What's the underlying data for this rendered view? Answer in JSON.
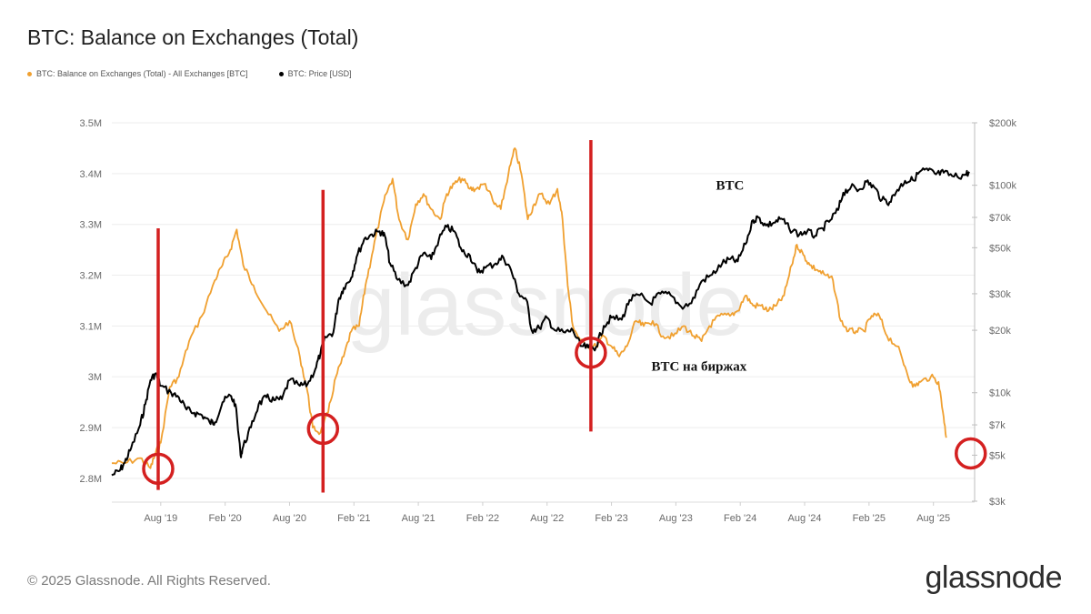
{
  "header": {
    "title": "BTC: Balance on Exchanges (Total)"
  },
  "legend": {
    "items": [
      {
        "label": "BTC: Balance on Exchanges (Total) - All Exchanges [BTC]",
        "color": "#f0a030"
      },
      {
        "label": "BTC: Price [USD]",
        "color": "#000000"
      }
    ]
  },
  "chart_data": {
    "type": "line",
    "title": "BTC: Balance on Exchanges (Total)",
    "x_range": [
      2019.2,
      2025.9
    ],
    "x_tick_labels": [
      {
        "label": "Aug '19",
        "t": 2019.58
      },
      {
        "label": "Feb '20",
        "t": 2020.08
      },
      {
        "label": "Aug '20",
        "t": 2020.58
      },
      {
        "label": "Feb '21",
        "t": 2021.08
      },
      {
        "label": "Aug '21",
        "t": 2021.58
      },
      {
        "label": "Feb '22",
        "t": 2022.08
      },
      {
        "label": "Aug '22",
        "t": 2022.58
      },
      {
        "label": "Feb '23",
        "t": 2023.08
      },
      {
        "label": "Aug '23",
        "t": 2023.58
      },
      {
        "label": "Feb '24",
        "t": 2024.08
      },
      {
        "label": "Aug '24",
        "t": 2024.58
      },
      {
        "label": "Feb '25",
        "t": 2025.08
      },
      {
        "label": "Aug '25",
        "t": 2025.58
      }
    ],
    "y_left": {
      "label": "BTC",
      "range": [
        2.73,
        3.5
      ],
      "ticks": [
        {
          "label": "2.8M",
          "v": 2.8
        },
        {
          "label": "2.9M",
          "v": 2.9
        },
        {
          "label": "3M",
          "v": 3.0
        },
        {
          "label": "3.1M",
          "v": 3.1
        },
        {
          "label": "3.2M",
          "v": 3.2
        },
        {
          "label": "3.3M",
          "v": 3.3
        },
        {
          "label": "3.4M",
          "v": 3.4
        },
        {
          "label": "3.5M",
          "v": 3.5
        }
      ]
    },
    "y_right": {
      "label": "USD",
      "scale": "log",
      "range": [
        3000,
        200000
      ],
      "ticks": [
        {
          "label": "$3k",
          "v": 3000
        },
        {
          "label": "$5k",
          "v": 5000
        },
        {
          "label": "$7k",
          "v": 7000
        },
        {
          "label": "$10k",
          "v": 10000
        },
        {
          "label": "$20k",
          "v": 20000
        },
        {
          "label": "$30k",
          "v": 30000
        },
        {
          "label": "$50k",
          "v": 50000
        },
        {
          "label": "$70k",
          "v": 70000
        },
        {
          "label": "$100k",
          "v": 100000
        },
        {
          "label": "$200k",
          "v": 200000
        }
      ]
    },
    "series": [
      {
        "name": "BTC: Balance on Exchanges (Total) - All Exchanges [BTC]",
        "axis": "left",
        "unit": "M BTC",
        "color": "#f0a030",
        "points": [
          [
            2019.2,
            2.83
          ],
          [
            2019.3,
            2.83
          ],
          [
            2019.42,
            2.84
          ],
          [
            2019.5,
            2.82
          ],
          [
            2019.54,
            2.85
          ],
          [
            2019.58,
            2.87
          ],
          [
            2019.65,
            2.98
          ],
          [
            2019.72,
            3.0
          ],
          [
            2019.8,
            3.07
          ],
          [
            2019.9,
            3.12
          ],
          [
            2020.0,
            3.19
          ],
          [
            2020.06,
            3.22
          ],
          [
            2020.12,
            3.25
          ],
          [
            2020.17,
            3.29
          ],
          [
            2020.22,
            3.22
          ],
          [
            2020.3,
            3.18
          ],
          [
            2020.4,
            3.13
          ],
          [
            2020.5,
            3.09
          ],
          [
            2020.58,
            3.11
          ],
          [
            2020.66,
            3.04
          ],
          [
            2020.72,
            2.97
          ],
          [
            2020.76,
            2.9
          ],
          [
            2020.82,
            2.89
          ],
          [
            2020.88,
            2.93
          ],
          [
            2020.94,
            3.0
          ],
          [
            2021.0,
            3.04
          ],
          [
            2021.06,
            3.09
          ],
          [
            2021.12,
            3.1
          ],
          [
            2021.17,
            3.18
          ],
          [
            2021.22,
            3.24
          ],
          [
            2021.28,
            3.31
          ],
          [
            2021.33,
            3.36
          ],
          [
            2021.38,
            3.39
          ],
          [
            2021.43,
            3.31
          ],
          [
            2021.5,
            3.27
          ],
          [
            2021.56,
            3.34
          ],
          [
            2021.62,
            3.36
          ],
          [
            2021.68,
            3.33
          ],
          [
            2021.75,
            3.31
          ],
          [
            2021.8,
            3.36
          ],
          [
            2021.86,
            3.38
          ],
          [
            2021.92,
            3.39
          ],
          [
            2021.98,
            3.37
          ],
          [
            2022.03,
            3.37
          ],
          [
            2022.1,
            3.38
          ],
          [
            2022.17,
            3.34
          ],
          [
            2022.22,
            3.33
          ],
          [
            2022.28,
            3.4
          ],
          [
            2022.33,
            3.45
          ],
          [
            2022.38,
            3.4
          ],
          [
            2022.43,
            3.31
          ],
          [
            2022.48,
            3.34
          ],
          [
            2022.53,
            3.36
          ],
          [
            2022.6,
            3.34
          ],
          [
            2022.66,
            3.37
          ],
          [
            2022.7,
            3.31
          ],
          [
            2022.74,
            3.18
          ],
          [
            2022.78,
            3.1
          ],
          [
            2022.84,
            3.07
          ],
          [
            2022.9,
            3.06
          ],
          [
            2022.96,
            3.06
          ],
          [
            2023.02,
            3.08
          ],
          [
            2023.08,
            3.06
          ],
          [
            2023.14,
            3.04
          ],
          [
            2023.2,
            3.06
          ],
          [
            2023.27,
            3.11
          ],
          [
            2023.33,
            3.1
          ],
          [
            2023.4,
            3.11
          ],
          [
            2023.48,
            3.08
          ],
          [
            2023.56,
            3.08
          ],
          [
            2023.64,
            3.1
          ],
          [
            2023.72,
            3.08
          ],
          [
            2023.78,
            3.07
          ],
          [
            2023.84,
            3.1
          ],
          [
            2023.92,
            3.12
          ],
          [
            2024.0,
            3.12
          ],
          [
            2024.06,
            3.13
          ],
          [
            2024.12,
            3.16
          ],
          [
            2024.18,
            3.14
          ],
          [
            2024.24,
            3.14
          ],
          [
            2024.3,
            3.13
          ],
          [
            2024.36,
            3.14
          ],
          [
            2024.42,
            3.16
          ],
          [
            2024.48,
            3.22
          ],
          [
            2024.52,
            3.26
          ],
          [
            2024.57,
            3.24
          ],
          [
            2024.62,
            3.22
          ],
          [
            2024.68,
            3.21
          ],
          [
            2024.74,
            3.2
          ],
          [
            2024.8,
            3.19
          ],
          [
            2024.86,
            3.11
          ],
          [
            2024.92,
            3.09
          ],
          [
            2024.98,
            3.09
          ],
          [
            2025.04,
            3.09
          ],
          [
            2025.1,
            3.12
          ],
          [
            2025.16,
            3.12
          ],
          [
            2025.22,
            3.08
          ],
          [
            2025.3,
            3.06
          ],
          [
            2025.36,
            3.02
          ],
          [
            2025.42,
            2.98
          ],
          [
            2025.48,
            2.99
          ],
          [
            2025.56,
            3.0
          ],
          [
            2025.62,
            2.99
          ],
          [
            2025.66,
            2.92
          ],
          [
            2025.68,
            2.88
          ]
        ]
      },
      {
        "name": "BTC: Price [USD]",
        "axis": "right",
        "unit": "USD",
        "color": "#000000",
        "points": [
          [
            2019.2,
            4000
          ],
          [
            2019.26,
            4200
          ],
          [
            2019.3,
            4600
          ],
          [
            2019.35,
            5400
          ],
          [
            2019.42,
            7000
          ],
          [
            2019.46,
            8800
          ],
          [
            2019.5,
            11500
          ],
          [
            2019.54,
            12400
          ],
          [
            2019.58,
            10800
          ],
          [
            2019.66,
            10000
          ],
          [
            2019.72,
            9500
          ],
          [
            2019.78,
            8300
          ],
          [
            2019.84,
            8000
          ],
          [
            2019.9,
            7800
          ],
          [
            2019.96,
            7200
          ],
          [
            2020.0,
            7200
          ],
          [
            2020.06,
            9000
          ],
          [
            2020.12,
            9700
          ],
          [
            2020.16,
            8800
          ],
          [
            2020.2,
            5000
          ],
          [
            2020.22,
            5500
          ],
          [
            2020.28,
            6800
          ],
          [
            2020.34,
            8800
          ],
          [
            2020.4,
            9500
          ],
          [
            2020.46,
            9200
          ],
          [
            2020.52,
            9300
          ],
          [
            2020.58,
            11500
          ],
          [
            2020.66,
            10800
          ],
          [
            2020.72,
            11000
          ],
          [
            2020.78,
            13000
          ],
          [
            2020.82,
            15500
          ],
          [
            2020.86,
            18500
          ],
          [
            2020.92,
            19500
          ],
          [
            2020.96,
            28000
          ],
          [
            2021.0,
            32000
          ],
          [
            2021.06,
            36000
          ],
          [
            2021.1,
            45000
          ],
          [
            2021.16,
            55000
          ],
          [
            2021.22,
            58000
          ],
          [
            2021.28,
            60000
          ],
          [
            2021.32,
            57000
          ],
          [
            2021.36,
            42000
          ],
          [
            2021.42,
            35000
          ],
          [
            2021.5,
            33000
          ],
          [
            2021.56,
            40000
          ],
          [
            2021.62,
            47000
          ],
          [
            2021.68,
            44000
          ],
          [
            2021.74,
            55000
          ],
          [
            2021.8,
            63000
          ],
          [
            2021.86,
            60000
          ],
          [
            2021.92,
            48000
          ],
          [
            2021.98,
            46000
          ],
          [
            2022.04,
            38000
          ],
          [
            2022.1,
            40000
          ],
          [
            2022.18,
            42000
          ],
          [
            2022.24,
            45000
          ],
          [
            2022.3,
            39000
          ],
          [
            2022.36,
            30000
          ],
          [
            2022.42,
            28000
          ],
          [
            2022.46,
            20000
          ],
          [
            2022.52,
            20500
          ],
          [
            2022.58,
            23000
          ],
          [
            2022.64,
            20000
          ],
          [
            2022.72,
            19500
          ],
          [
            2022.78,
            20000
          ],
          [
            2022.84,
            16800
          ],
          [
            2022.9,
            16500
          ],
          [
            2022.96,
            16600
          ],
          [
            2023.02,
            21000
          ],
          [
            2023.08,
            23000
          ],
          [
            2023.16,
            22500
          ],
          [
            2023.22,
            28000
          ],
          [
            2023.3,
            29500
          ],
          [
            2023.38,
            27000
          ],
          [
            2023.46,
            30000
          ],
          [
            2023.54,
            29500
          ],
          [
            2023.62,
            26000
          ],
          [
            2023.7,
            27000
          ],
          [
            2023.78,
            34500
          ],
          [
            2023.86,
            37000
          ],
          [
            2023.94,
            42000
          ],
          [
            2024.0,
            44000
          ],
          [
            2024.06,
            43000
          ],
          [
            2024.12,
            52000
          ],
          [
            2024.18,
            68000
          ],
          [
            2024.22,
            70000
          ],
          [
            2024.28,
            64000
          ],
          [
            2024.34,
            66000
          ],
          [
            2024.4,
            69000
          ],
          [
            2024.46,
            62000
          ],
          [
            2024.54,
            58000
          ],
          [
            2024.6,
            60000
          ],
          [
            2024.66,
            57000
          ],
          [
            2024.72,
            62000
          ],
          [
            2024.78,
            68000
          ],
          [
            2024.84,
            76000
          ],
          [
            2024.88,
            92000
          ],
          [
            2024.94,
            98000
          ],
          [
            2025.0,
            95000
          ],
          [
            2025.06,
            104000
          ],
          [
            2025.12,
            98000
          ],
          [
            2025.18,
            85000
          ],
          [
            2025.24,
            83000
          ],
          [
            2025.3,
            95000
          ],
          [
            2025.36,
            105000
          ],
          [
            2025.42,
            106000
          ],
          [
            2025.48,
            117000
          ],
          [
            2025.54,
            118000
          ],
          [
            2025.6,
            113000
          ],
          [
            2025.66,
            115000
          ],
          [
            2025.74,
            110000
          ],
          [
            2025.82,
            112000
          ],
          [
            2025.86,
            116000
          ]
        ]
      }
    ],
    "annotations": {
      "labels": [
        {
          "text": "BTC",
          "t": 2024.0,
          "price": 95000
        },
        {
          "text": "BTC на биржах",
          "t": 2023.76,
          "price": 12800
        }
      ],
      "vertical_lines": [
        {
          "t": 2019.56,
          "price_top": 62000,
          "price_bottom": 3400
        },
        {
          "t": 2020.84,
          "price_top": 95000,
          "price_bottom": 3300
        },
        {
          "t": 2022.92,
          "price_top": 165000,
          "price_bottom": 6500
        }
      ],
      "circles": [
        {
          "t": 2019.56,
          "price": 4300
        },
        {
          "t": 2020.84,
          "price": 6700
        },
        {
          "t": 2022.92,
          "price": 15600
        },
        {
          "t": 2025.87,
          "price": 5100
        }
      ],
      "color": "#d42020"
    },
    "grid": true,
    "legend_position": "top-left",
    "watermark": "glassnode"
  },
  "footer": {
    "copyright": "© 2025 Glassnode. All Rights Reserved.",
    "logo": "glassnode"
  }
}
